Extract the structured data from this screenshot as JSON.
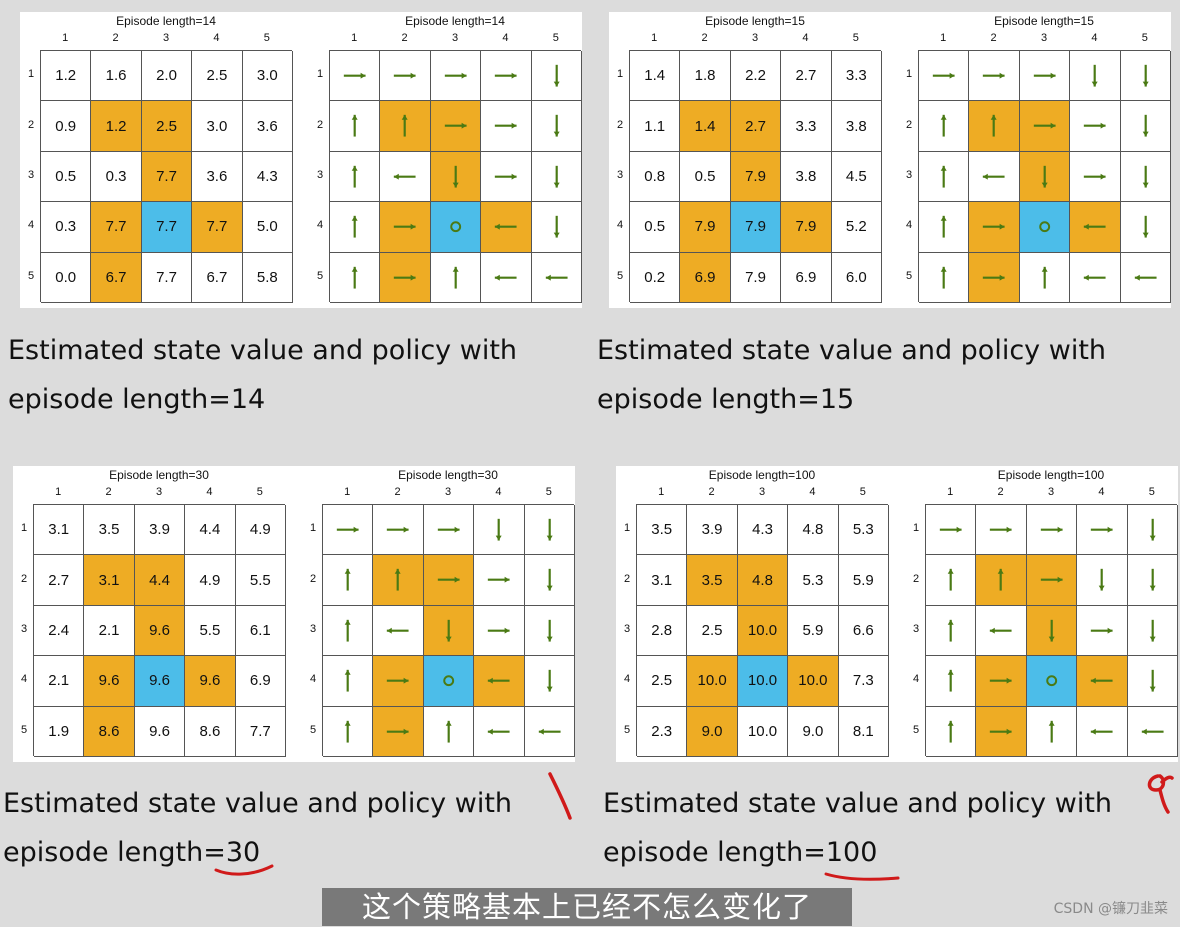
{
  "column_labels": [
    "1",
    "2",
    "3",
    "4",
    "5"
  ],
  "row_labels": [
    "1",
    "2",
    "3",
    "4",
    "5"
  ],
  "forbidden_cells": [
    [
      1,
      1
    ],
    [
      1,
      2
    ],
    [
      2,
      2
    ],
    [
      3,
      1
    ],
    [
      3,
      3
    ],
    [
      4,
      1
    ]
  ],
  "target_cell": [
    3,
    2
  ],
  "colors": {
    "forbidden": "#eeac24",
    "target": "#4cbde9",
    "arrow": "#4a7a14",
    "annotation": "#d01a1a"
  },
  "panels": [
    {
      "title": "Episode length=14",
      "caption_line1": "Estimated state value and policy with",
      "caption_line2": "episode length=14",
      "values": [
        [
          "1.2",
          "1.6",
          "2.0",
          "2.5",
          "3.0"
        ],
        [
          "0.9",
          "1.2",
          "2.5",
          "3.0",
          "3.6"
        ],
        [
          "0.5",
          "0.3",
          "7.7",
          "3.6",
          "4.3"
        ],
        [
          "0.3",
          "7.7",
          "7.7",
          "7.7",
          "5.0"
        ],
        [
          "0.0",
          "6.7",
          "7.7",
          "6.7",
          "5.8"
        ]
      ],
      "policy": [
        [
          "right",
          "right",
          "right",
          "right",
          "down"
        ],
        [
          "up",
          "up",
          "right",
          "right",
          "down"
        ],
        [
          "up",
          "left",
          "down",
          "right",
          "down"
        ],
        [
          "up",
          "right",
          "stay",
          "left",
          "down"
        ],
        [
          "up",
          "right",
          "up",
          "left",
          "left"
        ]
      ]
    },
    {
      "title": "Episode length=15",
      "caption_line1": "Estimated state value and policy with",
      "caption_line2": "episode length=15",
      "values": [
        [
          "1.4",
          "1.8",
          "2.2",
          "2.7",
          "3.3"
        ],
        [
          "1.1",
          "1.4",
          "2.7",
          "3.3",
          "3.8"
        ],
        [
          "0.8",
          "0.5",
          "7.9",
          "3.8",
          "4.5"
        ],
        [
          "0.5",
          "7.9",
          "7.9",
          "7.9",
          "5.2"
        ],
        [
          "0.2",
          "6.9",
          "7.9",
          "6.9",
          "6.0"
        ]
      ],
      "policy": [
        [
          "right",
          "right",
          "right",
          "down",
          "down"
        ],
        [
          "up",
          "up",
          "right",
          "right",
          "down"
        ],
        [
          "up",
          "left",
          "down",
          "right",
          "down"
        ],
        [
          "up",
          "right",
          "stay",
          "left",
          "down"
        ],
        [
          "up",
          "right",
          "up",
          "left",
          "left"
        ]
      ]
    },
    {
      "title": "Episode length=30",
      "caption_line1": "Estimated state value and policy with",
      "caption_line2_prefix": "episode length=",
      "caption_line2_number": "30",
      "values": [
        [
          "3.1",
          "3.5",
          "3.9",
          "4.4",
          "4.9"
        ],
        [
          "2.7",
          "3.1",
          "4.4",
          "4.9",
          "5.5"
        ],
        [
          "2.4",
          "2.1",
          "9.6",
          "5.5",
          "6.1"
        ],
        [
          "2.1",
          "9.6",
          "9.6",
          "9.6",
          "6.9"
        ],
        [
          "1.9",
          "8.6",
          "9.6",
          "8.6",
          "7.7"
        ]
      ],
      "policy": [
        [
          "right",
          "right",
          "right",
          "down",
          "down"
        ],
        [
          "up",
          "up",
          "right",
          "right",
          "down"
        ],
        [
          "up",
          "left",
          "down",
          "right",
          "down"
        ],
        [
          "up",
          "right",
          "stay",
          "left",
          "down"
        ],
        [
          "up",
          "right",
          "up",
          "left",
          "left"
        ]
      ]
    },
    {
      "title": "Episode length=100",
      "caption_line1": "Estimated state value and policy with",
      "caption_line2_prefix": "episode length=",
      "caption_line2_number": "100",
      "values": [
        [
          "3.5",
          "3.9",
          "4.3",
          "4.8",
          "5.3"
        ],
        [
          "3.1",
          "3.5",
          "4.8",
          "5.3",
          "5.9"
        ],
        [
          "2.8",
          "2.5",
          "10.0",
          "5.9",
          "6.6"
        ],
        [
          "2.5",
          "10.0",
          "10.0",
          "10.0",
          "7.3"
        ],
        [
          "2.3",
          "9.0",
          "10.0",
          "9.0",
          "8.1"
        ]
      ],
      "policy": [
        [
          "right",
          "right",
          "right",
          "right",
          "down"
        ],
        [
          "up",
          "up",
          "right",
          "down",
          "down"
        ],
        [
          "up",
          "left",
          "down",
          "right",
          "down"
        ],
        [
          "up",
          "right",
          "stay",
          "left",
          "down"
        ],
        [
          "up",
          "right",
          "up",
          "left",
          "left"
        ]
      ]
    }
  ],
  "subtitle": "这个策略基本上已经不怎么变化了",
  "watermark": "CSDN @镰刀韭菜"
}
